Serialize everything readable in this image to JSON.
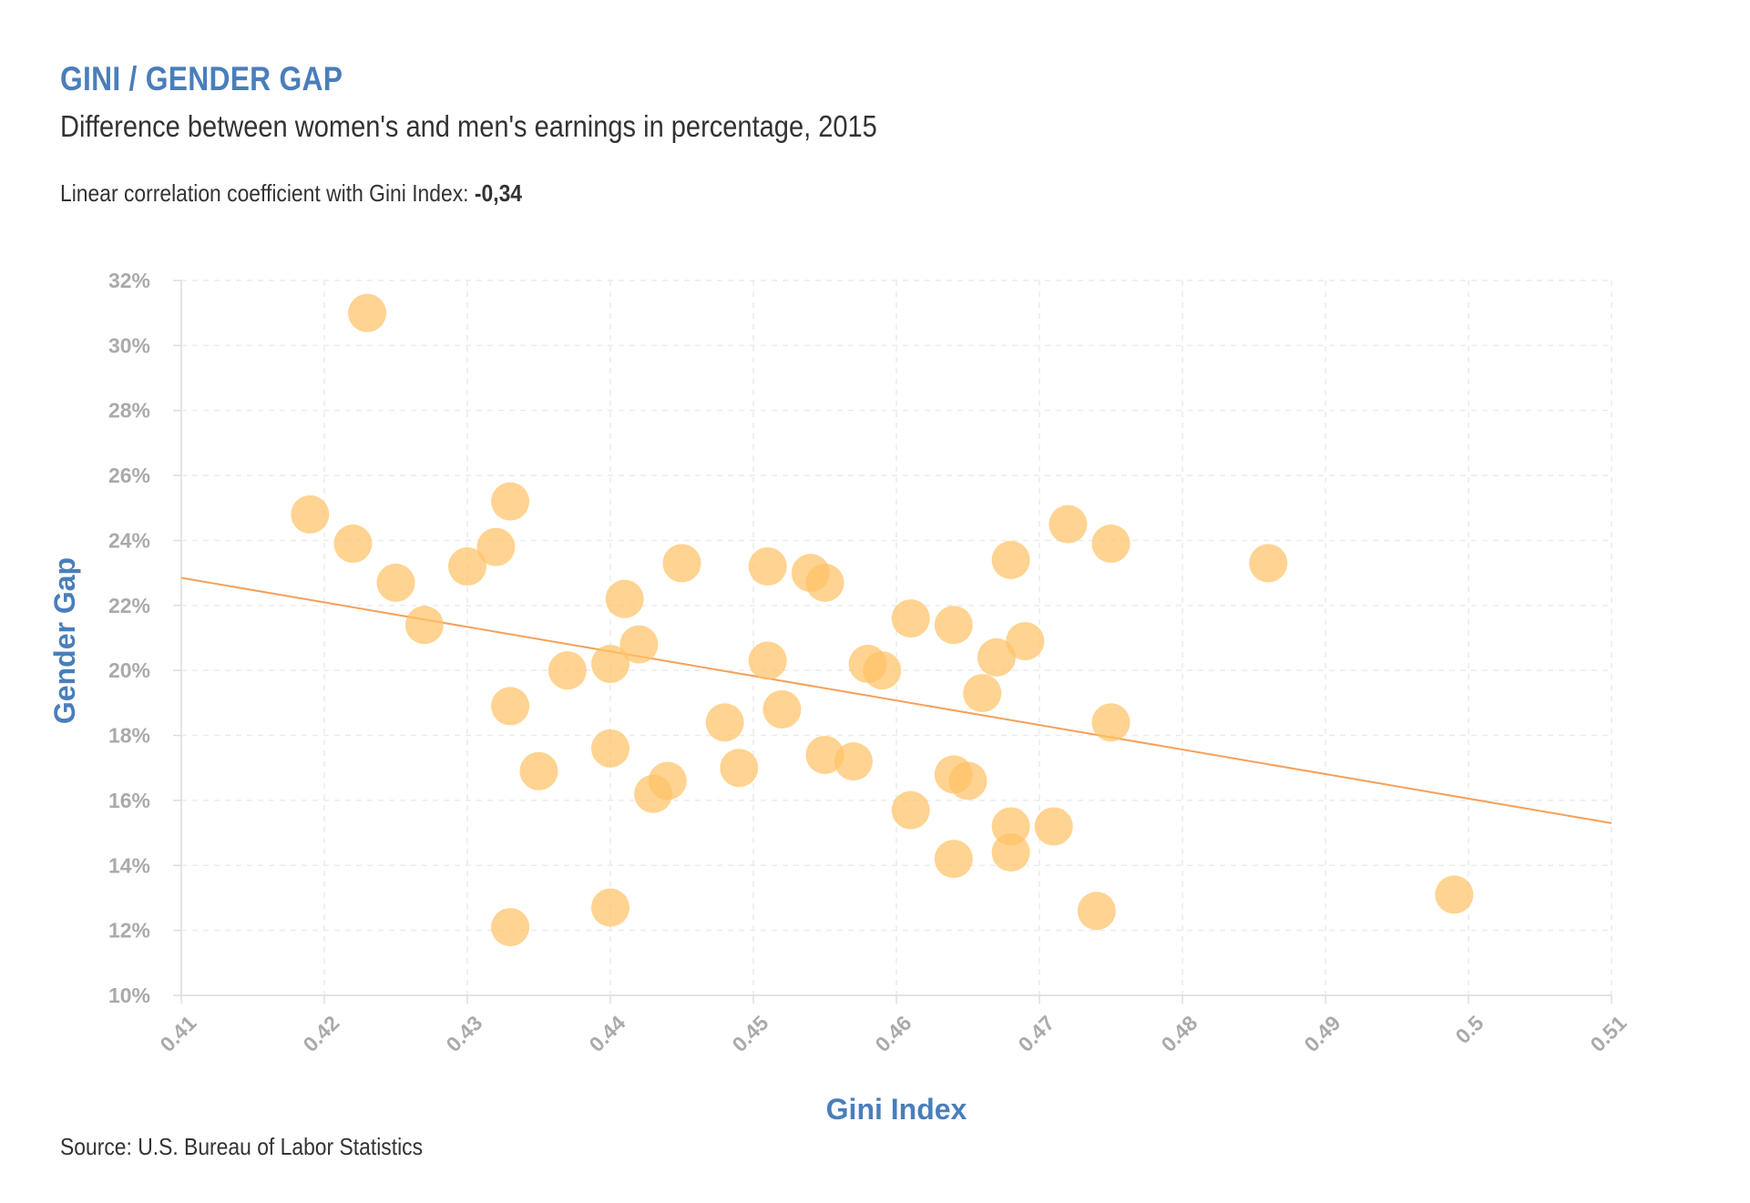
{
  "header": {
    "title": "GINI / GENDER GAP",
    "subtitle": "Difference between women's and men's earnings in percentage, 2015",
    "note_prefix": "Linear correlation coefficient with Gini Index: ",
    "note_value": "-0,34",
    "source": "Source: U.S. Bureau of Labor Statistics"
  },
  "colors": {
    "point": "#ffc266",
    "trend": "#f5a05a",
    "grid": "#ececec",
    "tick": "#aaaaaa",
    "axis_title": "#4a7ebb"
  },
  "chart_data": {
    "type": "scatter",
    "xlabel": "Gini Index",
    "ylabel": "Gender Gap",
    "xlim": [
      0.41,
      0.51
    ],
    "ylim": [
      10,
      32
    ],
    "x_ticks": [
      0.41,
      0.42,
      0.43,
      0.44,
      0.45,
      0.46,
      0.47,
      0.48,
      0.49,
      0.5,
      0.51
    ],
    "x_tick_labels": [
      "0.41",
      "0.42",
      "0.43",
      "0.44",
      "0.45",
      "0.46",
      "0.47",
      "0.48",
      "0.49",
      "0.5",
      "0.51"
    ],
    "y_ticks": [
      10,
      12,
      14,
      16,
      18,
      20,
      22,
      24,
      26,
      28,
      30,
      32
    ],
    "y_tick_labels": [
      "10%",
      "12%",
      "14%",
      "16%",
      "18%",
      "20%",
      "22%",
      "24%",
      "26%",
      "28%",
      "30%",
      "32%"
    ],
    "grid": true,
    "trend_line": {
      "x": [
        0.41,
        0.51
      ],
      "y": [
        22.85,
        15.3
      ]
    },
    "points": [
      {
        "x": 0.423,
        "y": 31.0
      },
      {
        "x": 0.419,
        "y": 24.8
      },
      {
        "x": 0.422,
        "y": 23.9
      },
      {
        "x": 0.425,
        "y": 22.7
      },
      {
        "x": 0.427,
        "y": 21.4
      },
      {
        "x": 0.43,
        "y": 23.2
      },
      {
        "x": 0.432,
        "y": 23.8
      },
      {
        "x": 0.433,
        "y": 25.2
      },
      {
        "x": 0.433,
        "y": 18.9
      },
      {
        "x": 0.433,
        "y": 12.1
      },
      {
        "x": 0.435,
        "y": 16.9
      },
      {
        "x": 0.437,
        "y": 20.0
      },
      {
        "x": 0.44,
        "y": 20.2
      },
      {
        "x": 0.44,
        "y": 17.6
      },
      {
        "x": 0.44,
        "y": 12.7
      },
      {
        "x": 0.441,
        "y": 22.2
      },
      {
        "x": 0.442,
        "y": 20.8
      },
      {
        "x": 0.443,
        "y": 16.2
      },
      {
        "x": 0.444,
        "y": 16.6
      },
      {
        "x": 0.445,
        "y": 23.3
      },
      {
        "x": 0.448,
        "y": 18.4
      },
      {
        "x": 0.449,
        "y": 17.0
      },
      {
        "x": 0.451,
        "y": 23.2
      },
      {
        "x": 0.451,
        "y": 20.3
      },
      {
        "x": 0.452,
        "y": 18.8
      },
      {
        "x": 0.454,
        "y": 23.0
      },
      {
        "x": 0.455,
        "y": 22.7
      },
      {
        "x": 0.455,
        "y": 17.4
      },
      {
        "x": 0.457,
        "y": 17.2
      },
      {
        "x": 0.458,
        "y": 20.2
      },
      {
        "x": 0.459,
        "y": 20.0
      },
      {
        "x": 0.461,
        "y": 21.6
      },
      {
        "x": 0.461,
        "y": 15.7
      },
      {
        "x": 0.464,
        "y": 21.4
      },
      {
        "x": 0.464,
        "y": 16.8
      },
      {
        "x": 0.464,
        "y": 14.2
      },
      {
        "x": 0.465,
        "y": 16.6
      },
      {
        "x": 0.466,
        "y": 19.3
      },
      {
        "x": 0.467,
        "y": 20.4
      },
      {
        "x": 0.468,
        "y": 23.4
      },
      {
        "x": 0.468,
        "y": 15.2
      },
      {
        "x": 0.468,
        "y": 14.4
      },
      {
        "x": 0.469,
        "y": 20.9
      },
      {
        "x": 0.471,
        "y": 15.2
      },
      {
        "x": 0.472,
        "y": 24.5
      },
      {
        "x": 0.474,
        "y": 12.6
      },
      {
        "x": 0.475,
        "y": 23.9
      },
      {
        "x": 0.475,
        "y": 18.4
      },
      {
        "x": 0.486,
        "y": 23.3
      },
      {
        "x": 0.499,
        "y": 13.1
      }
    ]
  }
}
